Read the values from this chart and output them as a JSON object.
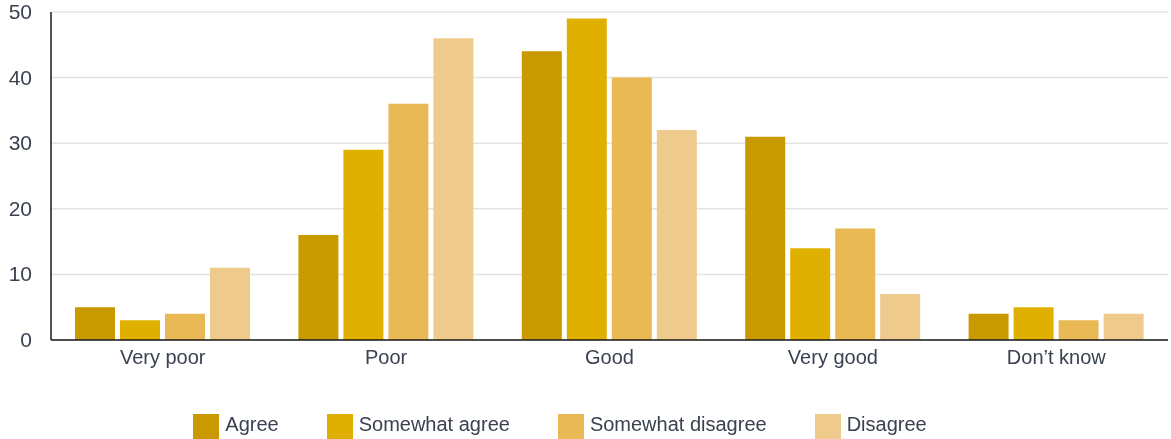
{
  "chart_data": {
    "type": "bar",
    "categories": [
      "Very poor",
      "Poor",
      "Good",
      "Very good",
      "Don’t know"
    ],
    "series": [
      {
        "name": "Agree",
        "color": "#c99a00",
        "values": [
          5,
          16,
          44,
          31,
          4
        ]
      },
      {
        "name": "Somewhat agree",
        "color": "#e0b000",
        "values": [
          3,
          29,
          49,
          14,
          5
        ]
      },
      {
        "name": "Somewhat disagree",
        "color": "#e9b955",
        "values": [
          4,
          36,
          40,
          17,
          3
        ]
      },
      {
        "name": "Disagree",
        "color": "#efca8d",
        "values": [
          11,
          46,
          32,
          7,
          4
        ]
      }
    ],
    "ylim": [
      0,
      50
    ],
    "yticks": [
      0,
      10,
      20,
      30,
      40,
      50
    ],
    "grid": "y",
    "legend": "bottom"
  }
}
